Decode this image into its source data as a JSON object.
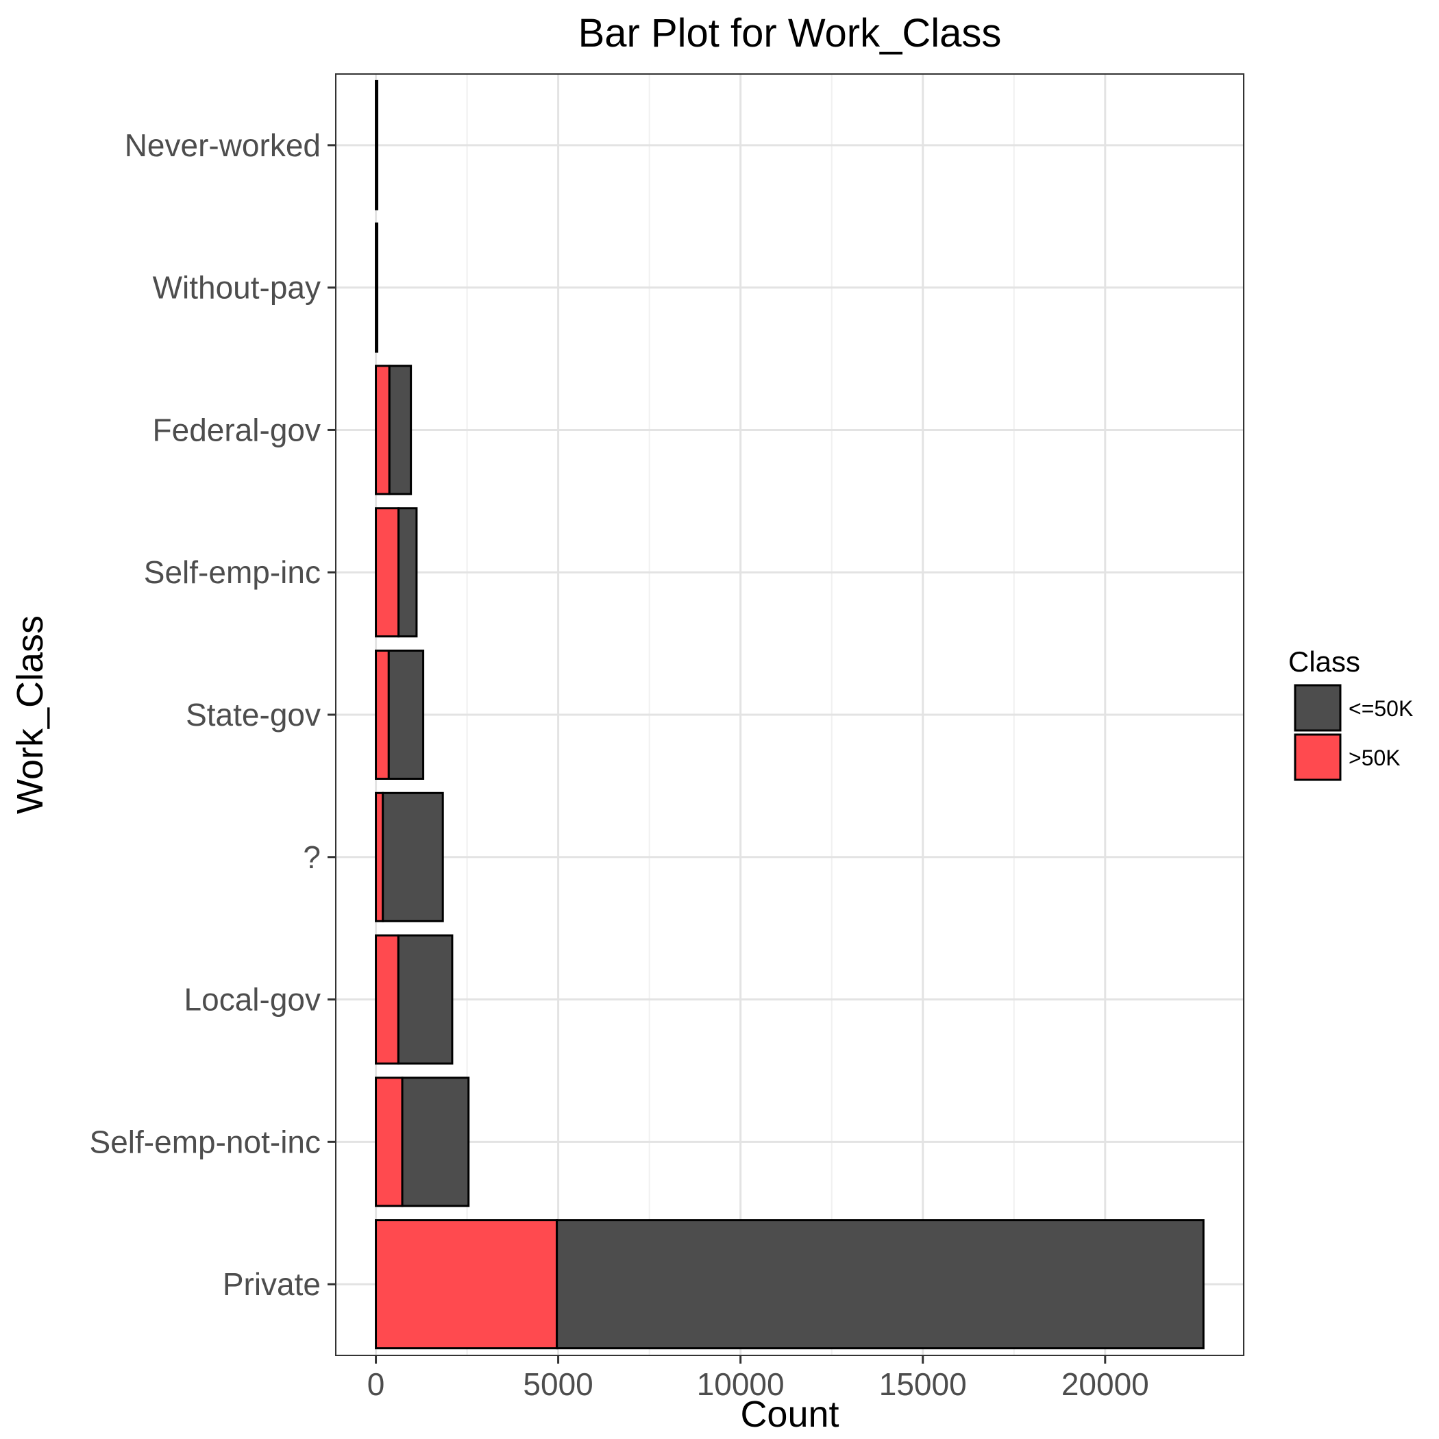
{
  "chart_data": {
    "type": "bar",
    "orientation": "horizontal",
    "stacked": true,
    "title": "Bar Plot for Work_Class",
    "xlabel": "Count",
    "ylabel": "Work_Class",
    "categories": [
      "Never-worked",
      "Without-pay",
      "Federal-gov",
      "Self-emp-inc",
      "State-gov",
      "?",
      "Local-gov",
      "Self-emp-not-inc",
      "Private"
    ],
    "series": [
      {
        "name": "<=50K",
        "color": "#4d4d4d",
        "values": [
          7,
          14,
          589,
          494,
          945,
          1645,
          1476,
          1817,
          17733
        ]
      },
      {
        "name": ">50K",
        "color": "#ff4a4f",
        "values": [
          0,
          0,
          371,
          622,
          353,
          191,
          617,
          724,
          4963
        ]
      }
    ],
    "xlim": [
      -1100,
      23800
    ],
    "xticks": [
      0,
      5000,
      10000,
      15000,
      20000
    ],
    "xtick_labels": [
      "0",
      "5000",
      "10000",
      "15000",
      "20000"
    ],
    "grid": true,
    "legend": {
      "title": "Class",
      "position": "right"
    }
  }
}
